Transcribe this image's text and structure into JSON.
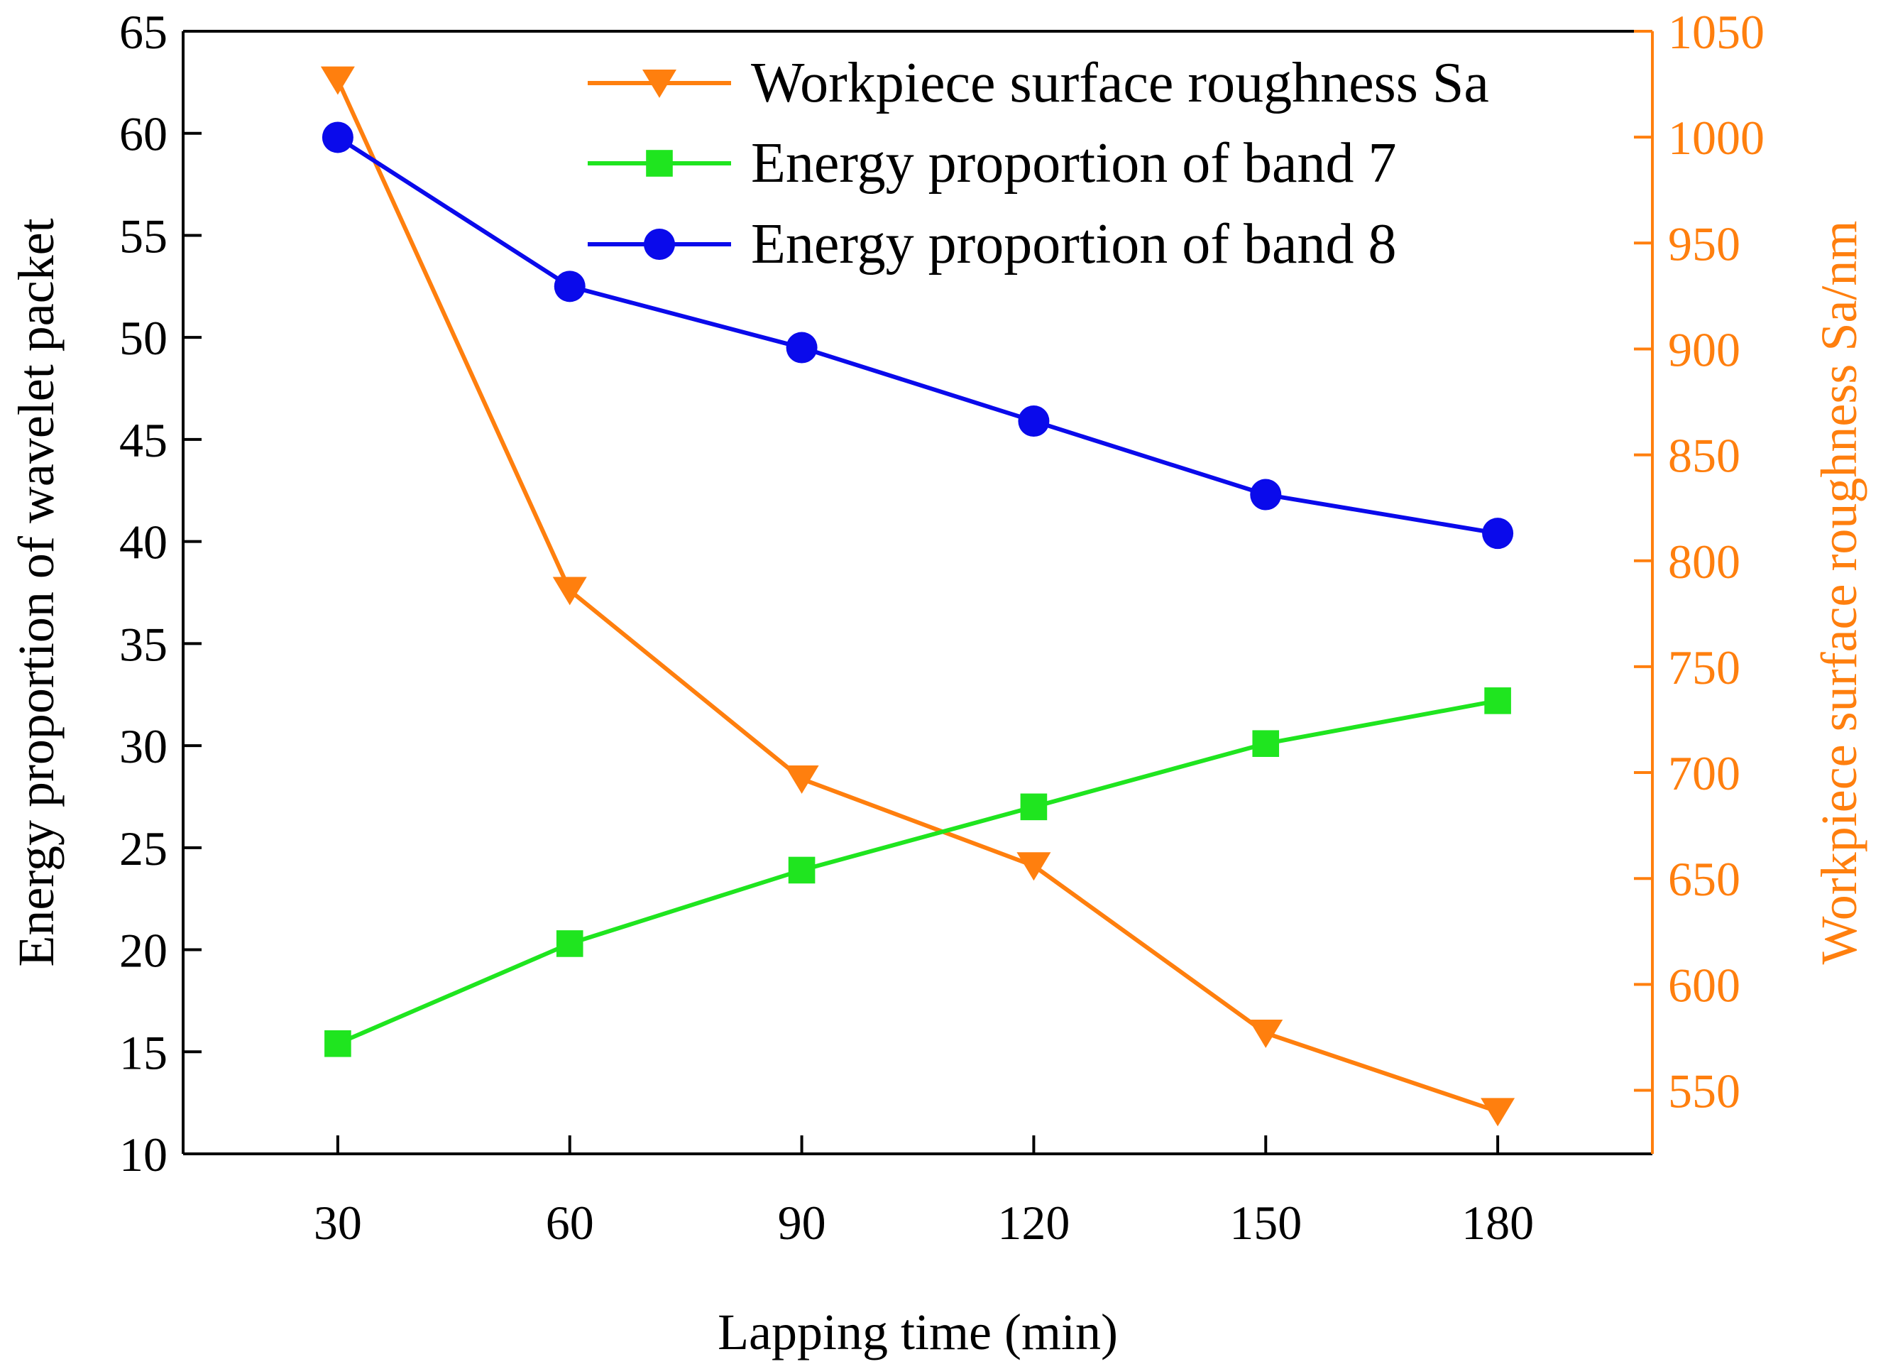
{
  "chart_data": {
    "type": "line",
    "x": [
      30,
      60,
      90,
      120,
      150,
      180
    ],
    "x_ticks": [
      30,
      60,
      90,
      120,
      150,
      180
    ],
    "xlim": [
      10,
      200
    ],
    "xlabel": "Lapping time (min)",
    "ylabel_left": "Energy proportion of wavelet packet",
    "ylabel_right": "Workpiece surface roughness Sa/nm",
    "ylim_left": [
      10,
      65
    ],
    "ylim_right": [
      520,
      1050
    ],
    "y_ticks_left": [
      10,
      15,
      20,
      25,
      30,
      35,
      40,
      45,
      50,
      55,
      60,
      65
    ],
    "y_ticks_right": [
      550,
      600,
      650,
      700,
      750,
      800,
      850,
      900,
      950,
      1000,
      1050
    ],
    "legend_position": "top-right",
    "grid": false,
    "series": [
      {
        "name": "Workpiece surface roughness Sa",
        "axis": "right",
        "marker": "triangle-down",
        "color": "#FF7F0E",
        "values": [
          1027,
          786,
          697,
          656,
          577,
          540
        ]
      },
      {
        "name": "Energy proportion of band 7",
        "axis": "left",
        "marker": "square",
        "color": "#1FE51F",
        "values": [
          15.4,
          20.3,
          23.9,
          27.0,
          30.1,
          32.2
        ]
      },
      {
        "name": "Energy proportion of band 8",
        "axis": "left",
        "marker": "circle",
        "color": "#0A0AEB",
        "values": [
          59.8,
          52.5,
          49.5,
          45.9,
          42.3,
          40.4
        ]
      }
    ]
  },
  "colors": {
    "left_axis": "#000000",
    "right_axis": "#FF7F0E"
  }
}
